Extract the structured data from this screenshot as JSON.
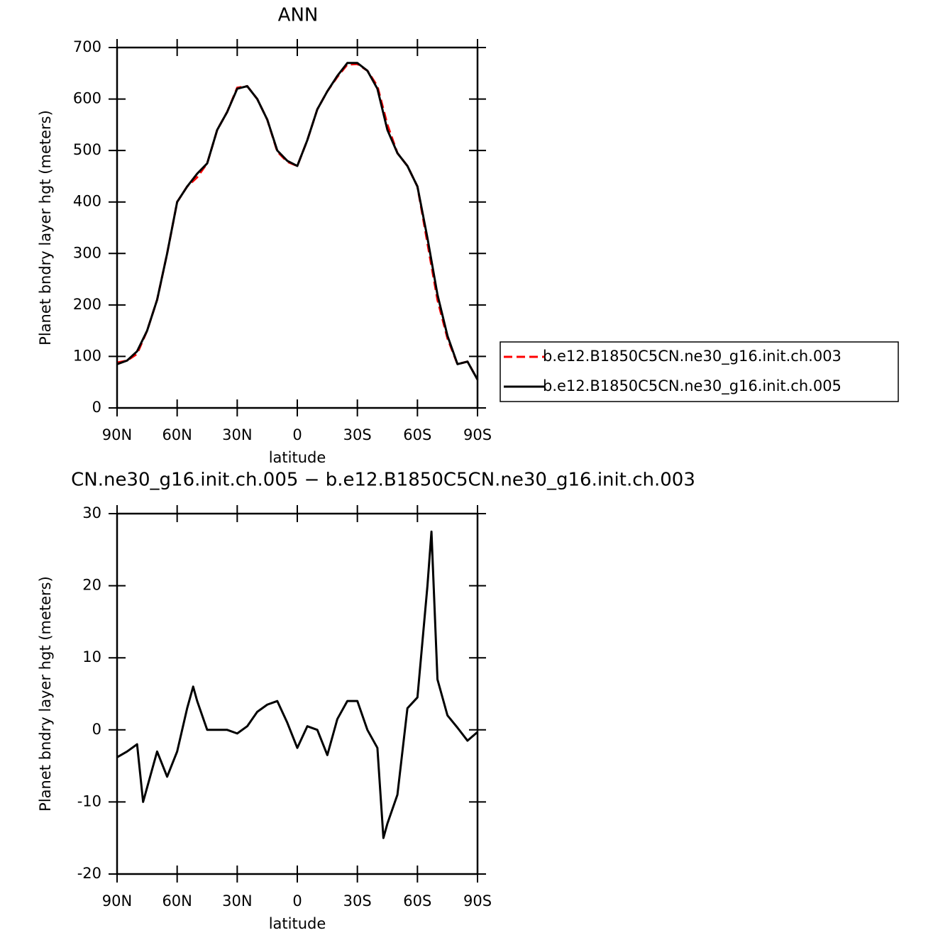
{
  "chart_data": [
    {
      "type": "line",
      "title": "ANN",
      "xlabel": "latitude",
      "ylabel": "Planet bndry layer hgt (meters)",
      "x": [
        90,
        85,
        80,
        75,
        70,
        65,
        60,
        55,
        50,
        45,
        40,
        35,
        30,
        25,
        20,
        15,
        10,
        5,
        0,
        -5,
        -10,
        -15,
        -20,
        -25,
        -30,
        -35,
        -40,
        -45,
        -50,
        -55,
        -60,
        -65,
        -70,
        -75,
        -80,
        -85,
        -90
      ],
      "series": [
        {
          "name": "b.e12.B1850C5CN.ne30_g16.init.ch.003",
          "color": "#ff0000",
          "line_style": "dashed",
          "values": [
            88,
            92,
            105,
            150,
            210,
            300,
            400,
            430,
            448,
            475,
            540,
            575,
            622,
            625,
            600,
            560,
            498,
            478,
            470,
            520,
            580,
            615,
            643,
            667,
            668,
            655,
            625,
            550,
            495,
            470,
            430,
            320,
            210,
            135,
            85,
            90,
            55
          ]
        },
        {
          "name": "b.e12.B1850C5CN.ne30_g16.init.ch.005",
          "color": "#000000",
          "line_style": "solid",
          "values": [
            85,
            92,
            110,
            150,
            210,
            300,
            400,
            430,
            455,
            475,
            540,
            575,
            620,
            625,
            600,
            560,
            500,
            480,
            470,
            520,
            580,
            615,
            645,
            670,
            670,
            655,
            620,
            540,
            495,
            470,
            430,
            330,
            220,
            140,
            85,
            90,
            55
          ]
        }
      ],
      "xlim": [
        90,
        -90
      ],
      "xticks": [
        {
          "value": 90,
          "label": "90N"
        },
        {
          "value": 60,
          "label": "60N"
        },
        {
          "value": 30,
          "label": "30N"
        },
        0,
        {
          "value": -30,
          "label": "30S"
        },
        {
          "value": -60,
          "label": "60S"
        },
        {
          "value": -90,
          "label": "90S"
        }
      ],
      "ylim": [
        0,
        700
      ],
      "yticks": [
        0,
        100,
        200,
        300,
        400,
        500,
        600,
        700
      ],
      "legend": "right"
    },
    {
      "type": "line",
      "title": "CN.ne30_g16.init.ch.005 − b.e12.B1850C5CN.ne30_g16.init.ch.003",
      "xlabel": "latitude",
      "ylabel": "Planet bndry layer hgt (meters)",
      "x": [
        90,
        85,
        80,
        77,
        75,
        70,
        65,
        60,
        55,
        52,
        50,
        45,
        40,
        35,
        30,
        25,
        20,
        15,
        10,
        5,
        0,
        -5,
        -10,
        -15,
        -20,
        -25,
        -30,
        -35,
        -40,
        -43,
        -45,
        -50,
        -55,
        -60,
        -65,
        -67,
        -70,
        -75,
        -80,
        -85,
        -90
      ],
      "values": [
        -3.8,
        -3,
        -2,
        -10,
        -8,
        -3,
        -6.5,
        -3,
        3,
        6,
        4,
        0,
        0,
        0,
        -0.5,
        0.5,
        2.5,
        3.5,
        4,
        1,
        -2.5,
        0.5,
        0,
        -3.5,
        1.5,
        4,
        4,
        0,
        -2.5,
        -15,
        -13,
        -9,
        3,
        4.5,
        20,
        27.5,
        7,
        2,
        0.3,
        -1.5,
        -0.3
      ],
      "color": "#000000",
      "xlim": [
        90,
        -90
      ],
      "xticks": [
        {
          "value": 90,
          "label": "90N"
        },
        {
          "value": 60,
          "label": "60N"
        },
        {
          "value": 30,
          "label": "30N"
        },
        0,
        {
          "value": -30,
          "label": "30S"
        },
        {
          "value": -60,
          "label": "60S"
        },
        {
          "value": -90,
          "label": "90S"
        }
      ],
      "ylim": [
        -20,
        30
      ],
      "yticks": [
        -20,
        -10,
        0,
        10,
        20,
        30
      ]
    }
  ]
}
